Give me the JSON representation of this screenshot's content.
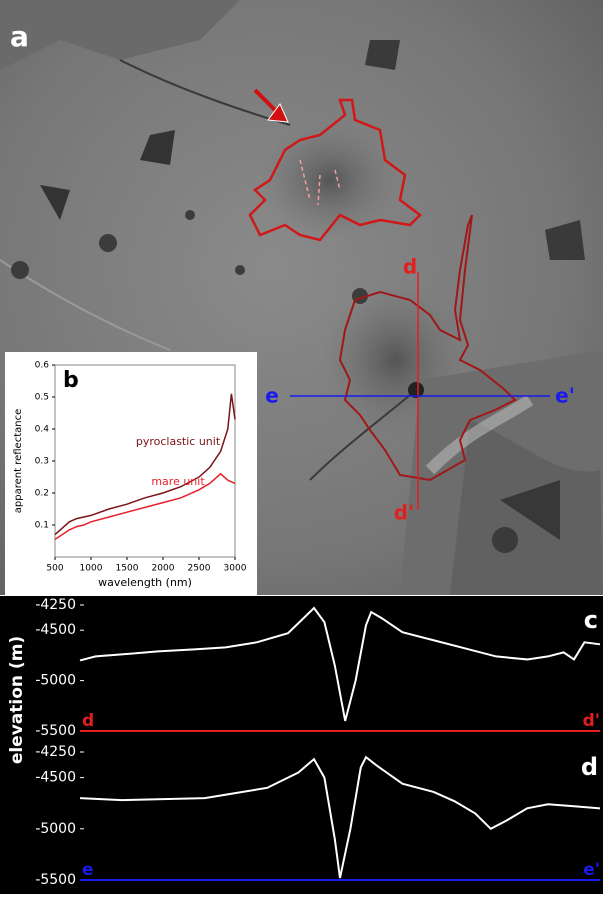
{
  "image": {
    "panel_label": "a",
    "section_d": [
      "d",
      "d'"
    ],
    "section_e": [
      "e",
      "e'"
    ]
  },
  "chart_data": [
    {
      "type": "line",
      "panel_label": "b",
      "xlabel": "wavelength (nm)",
      "ylabel": "apparent reflectance",
      "x": [
        500,
        600,
        700,
        800,
        900,
        1000,
        1250,
        1500,
        1750,
        2000,
        2250,
        2500,
        2650,
        2800,
        2900,
        2950,
        3000
      ],
      "series": [
        {
          "name": "pyroclastic unit",
          "color": "#7a1418",
          "values": [
            0.07,
            0.09,
            0.11,
            0.12,
            0.125,
            0.13,
            0.15,
            0.165,
            0.185,
            0.2,
            0.22,
            0.25,
            0.28,
            0.33,
            0.4,
            0.51,
            0.43
          ]
        },
        {
          "name": "mare unit",
          "color": "#e8202a",
          "values": [
            0.055,
            0.07,
            0.085,
            0.095,
            0.1,
            0.11,
            0.125,
            0.14,
            0.155,
            0.17,
            0.185,
            0.21,
            0.23,
            0.26,
            0.24,
            0.235,
            0.23
          ]
        }
      ],
      "xlim": [
        500,
        3000
      ],
      "xticks": [
        500,
        1000,
        1500,
        2000,
        2500,
        3000
      ],
      "ylim": [
        0,
        0.6
      ],
      "yticks": [
        0.1,
        0.2,
        0.3,
        0.4,
        0.5,
        0.6
      ]
    },
    {
      "type": "line",
      "panel_label": "c",
      "ylabel": "elevation (m)",
      "start_label": "d",
      "end_label": "d'",
      "baseline_color": "#e02020",
      "x": [
        0,
        3,
        8,
        15,
        22,
        28,
        34,
        40,
        43,
        45,
        47,
        49,
        51,
        53,
        55,
        56,
        58,
        62,
        68,
        74,
        80,
        86,
        90,
        93,
        95,
        97,
        100
      ],
      "series": [
        {
          "color": "#ffffff",
          "values": [
            -4800,
            -4760,
            -4740,
            -4710,
            -4690,
            -4670,
            -4620,
            -4530,
            -4380,
            -4280,
            -4420,
            -4850,
            -5400,
            -5000,
            -4450,
            -4320,
            -4380,
            -4520,
            -4600,
            -4680,
            -4760,
            -4790,
            -4760,
            -4720,
            -4790,
            -4620,
            -4640
          ]
        }
      ],
      "xlim": [
        0,
        100
      ],
      "ylim": [
        -5500,
        -4250
      ],
      "yticks": [
        -5500,
        -5000,
        -4500,
        -4250
      ]
    },
    {
      "type": "line",
      "panel_label": "d",
      "start_label": "e",
      "end_label": "e'",
      "baseline_color": "#1a1aee",
      "x": [
        0,
        8,
        16,
        24,
        30,
        36,
        42,
        45,
        47,
        49,
        50,
        52,
        54,
        55,
        57,
        62,
        68,
        72,
        76,
        79,
        82,
        86,
        90,
        95,
        100
      ],
      "series": [
        {
          "color": "#ffffff",
          "values": [
            -4700,
            -4720,
            -4710,
            -4700,
            -4650,
            -4600,
            -4450,
            -4320,
            -4500,
            -5100,
            -5480,
            -5000,
            -4400,
            -4300,
            -4380,
            -4560,
            -4640,
            -4730,
            -4850,
            -5000,
            -4920,
            -4800,
            -4760,
            -4780,
            -4800
          ]
        }
      ],
      "xlim": [
        0,
        100
      ],
      "ylim": [
        -5500,
        -4250
      ],
      "yticks": [
        -5500,
        -5000,
        -4500,
        -4250
      ]
    }
  ]
}
